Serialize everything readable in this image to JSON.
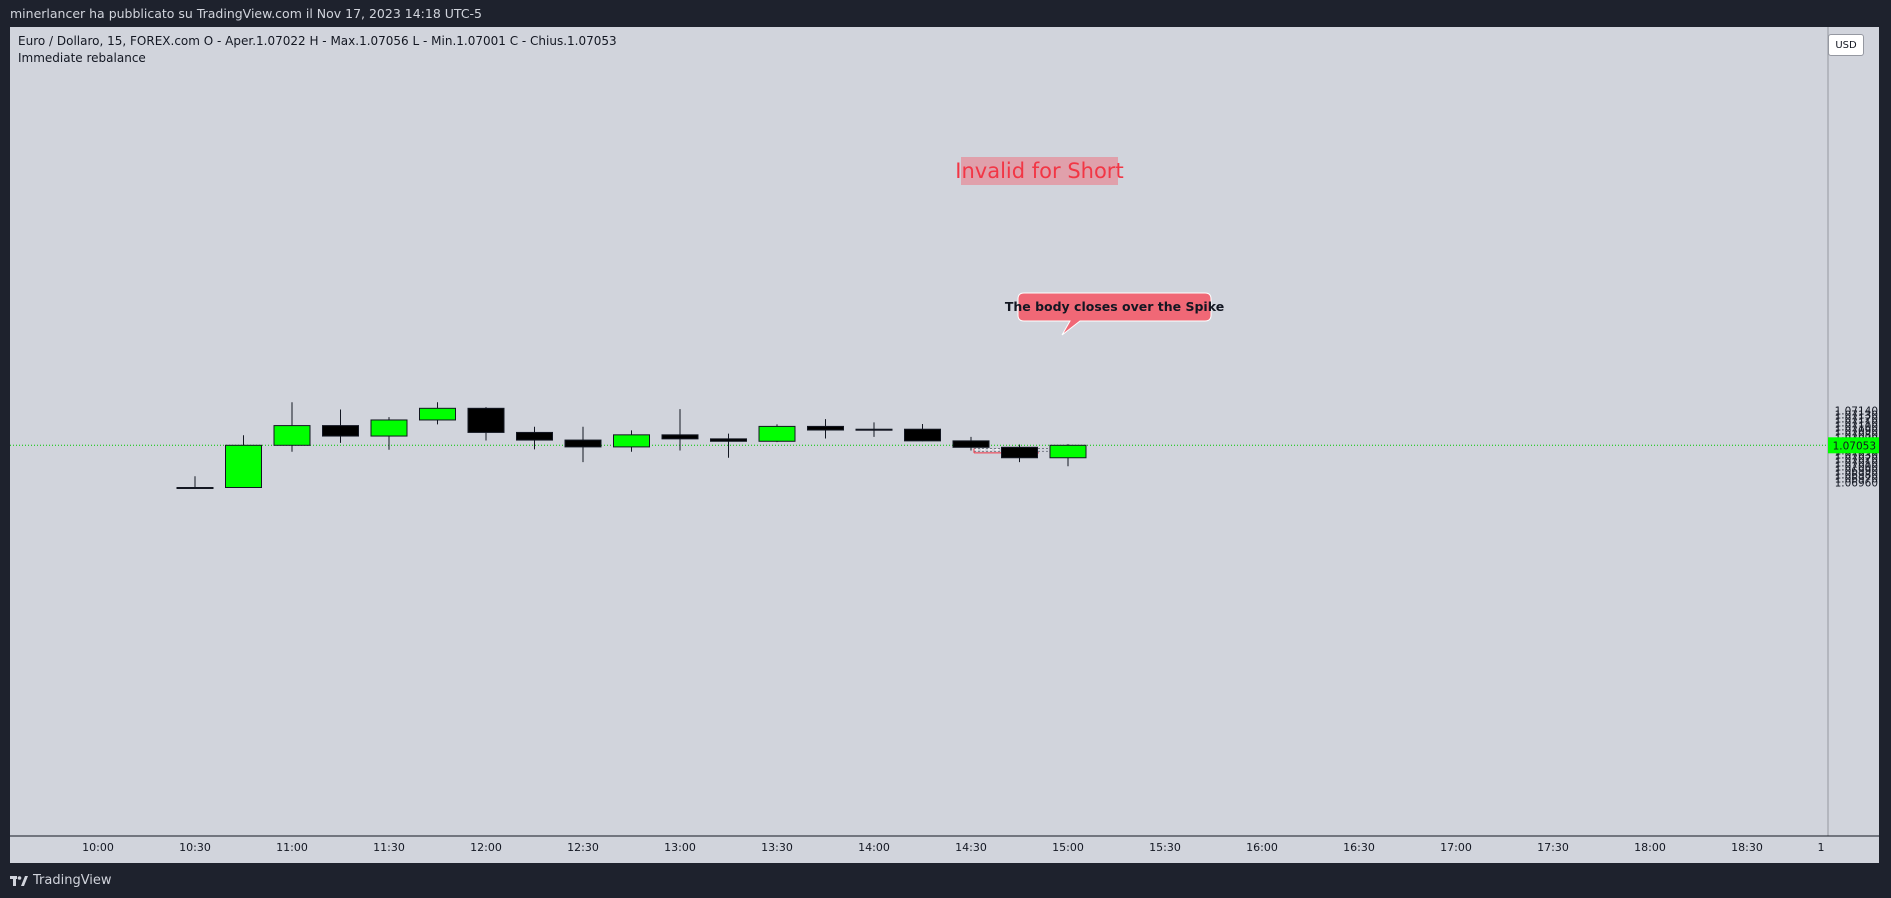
{
  "header": {
    "published_by": "minerlancer ha pubblicato su TradingView.com il Nov 17, 2023 14:18 UTC-5"
  },
  "legend": {
    "line1": "Euro / Dollaro, 15, FOREX.com  O - Aper.1.07022  H - Max.1.07056  L - Min.1.07001  C - Chius.1.07053",
    "line2": "Immediate rebalance"
  },
  "currency_button": "USD",
  "brand": {
    "name": "TradingView",
    "icon": "tradingview-logo-icon"
  },
  "colors": {
    "bull": "#00ff00",
    "bear": "#000000",
    "annotation_text": "#f23645",
    "annotation_bg": "#e0a0ab",
    "callout_bg": "#f06876",
    "price_line": "#00c800"
  },
  "annotations": {
    "invalid_short": "Invalid for Short",
    "callout": "The body closes over the Spike"
  },
  "chart_data": {
    "type": "candlestick",
    "symbol": "Euro / Dollaro",
    "timeframe": "15",
    "ylim": [
      1.0695,
      1.0715
    ],
    "y_ticks": [
      "1.06960",
      "1.06970",
      "1.06980",
      "1.06990",
      "1.07000",
      "1.07010",
      "1.07020",
      "1.07030",
      "1.07040",
      "1.07050",
      "1.07060",
      "1.07070",
      "1.07080",
      "1.07090",
      "1.07100",
      "1.07110",
      "1.07120",
      "1.07130",
      "1.07140"
    ],
    "x_ticks": [
      "10:00",
      "10:30",
      "11:00",
      "11:30",
      "12:00",
      "12:30",
      "13:00",
      "13:30",
      "14:00",
      "14:30",
      "15:00",
      "15:30",
      "16:00",
      "16:30",
      "17:00",
      "17:30",
      "18:00",
      "18:30",
      "1"
    ],
    "current_price": "1.07053",
    "candles": [
      {
        "time": "10:30",
        "o": 1.06948,
        "h": 1.06976,
        "l": 1.06948,
        "c": 1.06948
      },
      {
        "time": "10:45",
        "o": 1.06948,
        "h": 1.07078,
        "l": 1.06948,
        "c": 1.07053
      },
      {
        "time": "11:00",
        "o": 1.07053,
        "h": 1.0716,
        "l": 1.07037,
        "c": 1.07102
      },
      {
        "time": "11:15",
        "o": 1.07102,
        "h": 1.07142,
        "l": 1.07059,
        "c": 1.07076
      },
      {
        "time": "11:30",
        "o": 1.07076,
        "h": 1.07123,
        "l": 1.07042,
        "c": 1.07116
      },
      {
        "time": "11:45",
        "o": 1.07116,
        "h": 1.0716,
        "l": 1.07105,
        "c": 1.07145
      },
      {
        "time": "12:00",
        "o": 1.07145,
        "h": 1.07148,
        "l": 1.07065,
        "c": 1.07085
      },
      {
        "time": "12:15",
        "o": 1.07085,
        "h": 1.07099,
        "l": 1.07043,
        "c": 1.07066
      },
      {
        "time": "12:30",
        "o": 1.07066,
        "h": 1.07099,
        "l": 1.07011,
        "c": 1.07049
      },
      {
        "time": "12:45",
        "o": 1.07049,
        "h": 1.0709,
        "l": 1.07037,
        "c": 1.07079
      },
      {
        "time": "13:00",
        "o": 1.07079,
        "h": 1.07143,
        "l": 1.0704,
        "c": 1.07069
      },
      {
        "time": "13:15",
        "o": 1.07069,
        "h": 1.07082,
        "l": 1.07022,
        "c": 1.07063
      },
      {
        "time": "13:30",
        "o": 1.07063,
        "h": 1.07105,
        "l": 1.07061,
        "c": 1.071
      },
      {
        "time": "13:45",
        "o": 1.071,
        "h": 1.07118,
        "l": 1.0707,
        "c": 1.07091
      },
      {
        "time": "14:00",
        "o": 1.07091,
        "h": 1.0711,
        "l": 1.07074,
        "c": 1.07093
      },
      {
        "time": "14:15",
        "o": 1.07093,
        "h": 1.07106,
        "l": 1.07063,
        "c": 1.07064
      },
      {
        "time": "14:30",
        "o": 1.07064,
        "h": 1.07074,
        "l": 1.0704,
        "c": 1.07048
      },
      {
        "time": "14:45",
        "o": 1.07048,
        "h": 1.07055,
        "l": 1.07011,
        "c": 1.07022
      },
      {
        "time": "15:00",
        "o": 1.07022,
        "h": 1.07056,
        "l": 1.07001,
        "c": 1.07053
      }
    ]
  }
}
